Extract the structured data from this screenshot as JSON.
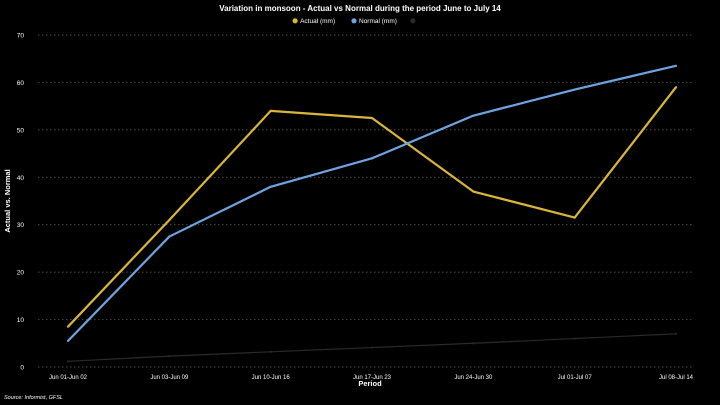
{
  "chart_data": {
    "type": "line",
    "title": "Variation in monsoon - Actual vs Normal during the period June to July 14",
    "xlabel": "Period",
    "ylabel": "Actual vs. Normal",
    "source": "Source: Informist, GFSL",
    "categories": [
      "Jun 01-Jun 02",
      "Jun 03-Jun 09",
      "Jun 10-Jun 16",
      "Jun 17-Jun 23",
      "Jun 24-Jun 30",
      "Jul 01-Jul 07",
      "Jul 08-Jul 14"
    ],
    "ylim": [
      0,
      70
    ],
    "yticks": [
      0,
      10,
      20,
      30,
      40,
      50,
      60,
      70
    ],
    "grid": true,
    "legend_position": "top-center",
    "series": [
      {
        "name": "Actual (mm)",
        "color": "#d9b53a",
        "values": [
          8.5,
          31,
          54,
          52.5,
          37,
          31.5,
          59
        ]
      },
      {
        "name": "Normal (mm)",
        "color": "#6fa3e0",
        "values": [
          5.5,
          27.5,
          38,
          44,
          53,
          58.5,
          63.5
        ]
      },
      {
        "name": "",
        "color": "#2a2a2a",
        "values": [
          1.2,
          2.3,
          3.2,
          4.1,
          5,
          6,
          7
        ]
      }
    ]
  }
}
